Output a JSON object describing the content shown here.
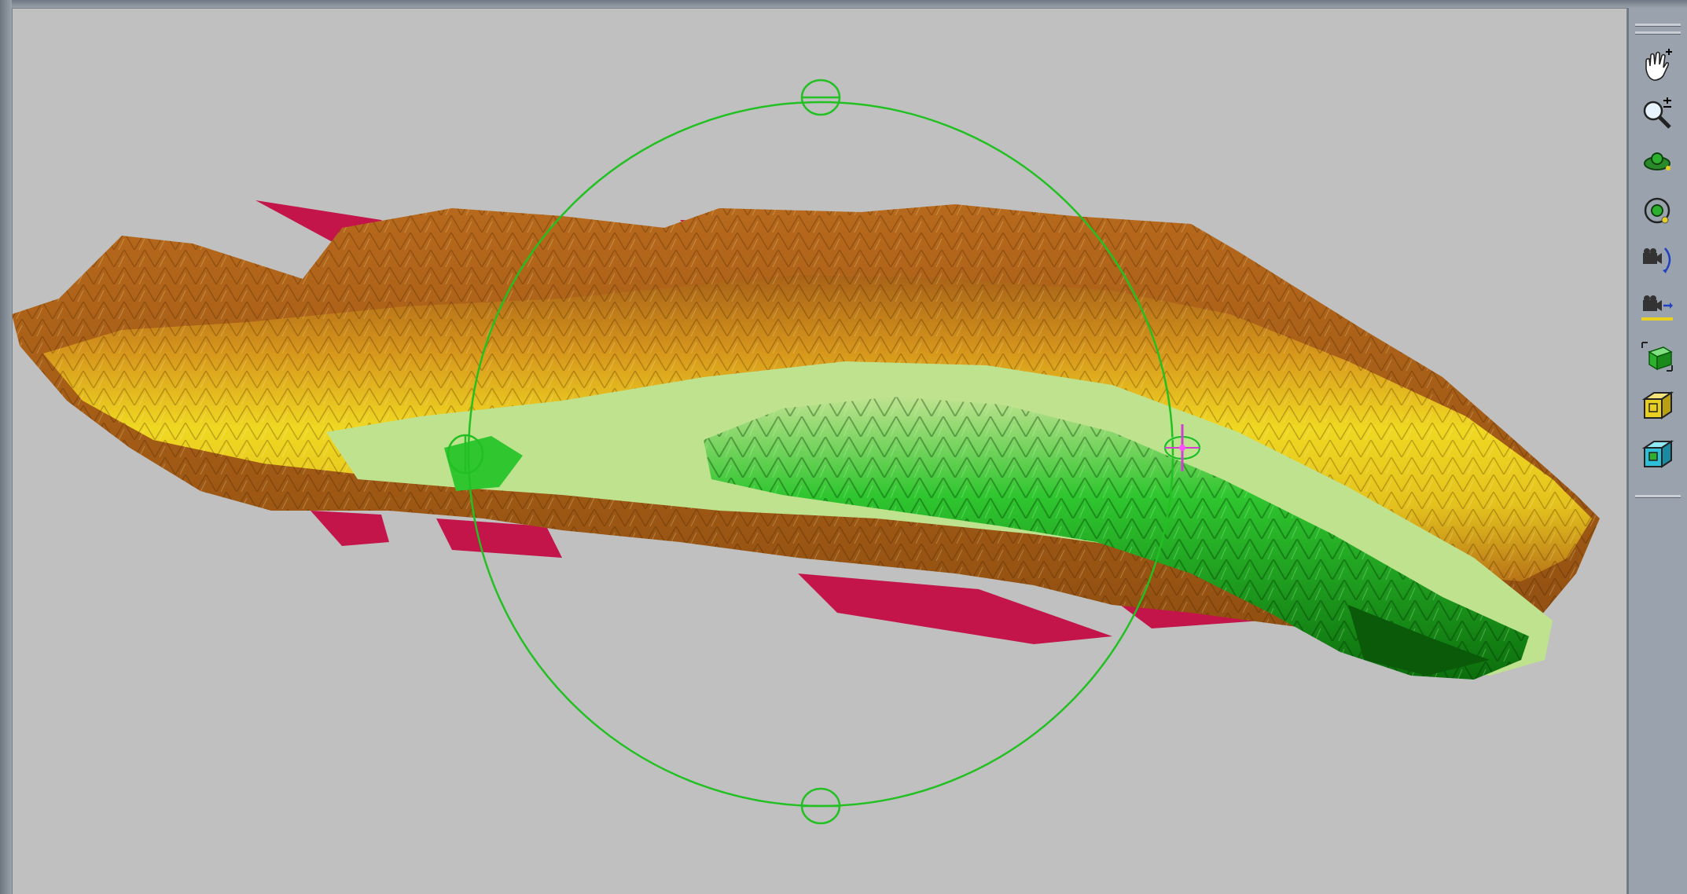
{
  "window": {
    "title": ""
  },
  "viewport": {
    "background_color": "#c0c0c0",
    "model_name": "",
    "rotation_manipulator": {
      "color": "#22c022",
      "handles": [
        "top",
        "bottom",
        "left",
        "right"
      ]
    }
  },
  "colors": {
    "surface_high": "#a8621a",
    "surface_mid": "#d99a1e",
    "surface_low": "#e6e61c",
    "surface_pale": "#bfe28f",
    "surface_deep": "#1fb41f",
    "surface_deepest": "#0d7a0d",
    "underside": "#c3154a",
    "toolbar": "#9aa3ad"
  },
  "toolbar": {
    "tools": [
      {
        "icon": "pan-hand-icon",
        "tooltip": ""
      },
      {
        "icon": "zoom-icon",
        "tooltip": ""
      },
      {
        "icon": "rotate-object-icon",
        "tooltip": ""
      },
      {
        "icon": "orbit-icon",
        "tooltip": ""
      },
      {
        "icon": "camera-rotate-icon",
        "tooltip": ""
      },
      {
        "icon": "camera-move-icon",
        "tooltip": ""
      },
      {
        "icon": "fit-view-icon",
        "tooltip": ""
      },
      {
        "icon": "box-view-yellow-icon",
        "tooltip": ""
      },
      {
        "icon": "box-view-cyan-icon",
        "tooltip": ""
      }
    ]
  }
}
